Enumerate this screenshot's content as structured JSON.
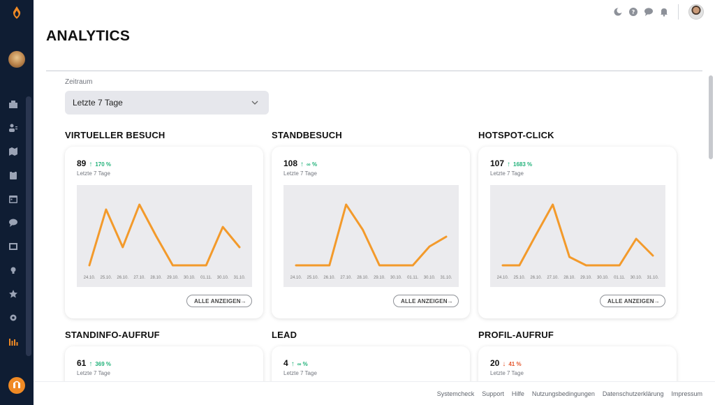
{
  "header": {
    "title": "ANALYTICS"
  },
  "filter": {
    "label": "Zeitraum",
    "selected": "Letzte 7 Tage"
  },
  "sidebar": {
    "icons": [
      "dashboard-icon",
      "users-icon",
      "map-icon",
      "clipboard-icon",
      "calendar-icon",
      "chat-icon",
      "media-icon",
      "lightbulb-icon",
      "star-icon",
      "settings-icon",
      "analytics-icon"
    ]
  },
  "topbar": {
    "icons": [
      "theme-toggle-icon",
      "help-icon",
      "messages-icon",
      "notification-icon"
    ]
  },
  "date_labels": [
    "24.10.",
    "25.10.",
    "26.10.",
    "27.10.",
    "28.10.",
    "29.10.",
    "30.10.",
    "01.11.",
    "30.10.",
    "31.10."
  ],
  "cards": [
    {
      "title": "VIRTUELLER BESUCH",
      "value": "89",
      "trend": "up",
      "arrow": "↑",
      "percent": "170 %",
      "period": "Letzte 7 Tage",
      "button": "ALLE ANZEIGEN",
      "chart_data": {
        "type": "line",
        "x": [
          "24.10.",
          "25.10.",
          "26.10.",
          "27.10.",
          "28.10.",
          "29.10.",
          "30.10.",
          "01.11.",
          "30.10.",
          "31.10."
        ],
        "values": [
          0.0,
          0.8,
          0.26,
          0.87,
          0.42,
          0.0,
          0.0,
          0.0,
          0.55,
          0.26
        ]
      }
    },
    {
      "title": "STANDBESUCH",
      "value": "108",
      "trend": "up",
      "arrow": "↑",
      "percent": "∞ %",
      "period": "Letzte 7 Tage",
      "button": "ALLE ANZEIGEN",
      "chart_data": {
        "type": "line",
        "x": [
          "24.10.",
          "25.10.",
          "26.10.",
          "27.10.",
          "28.10.",
          "29.10.",
          "30.10.",
          "01.11.",
          "30.10.",
          "31.10."
        ],
        "values": [
          0.0,
          0.0,
          0.0,
          0.87,
          0.51,
          0.0,
          0.0,
          0.0,
          0.27,
          0.41
        ]
      }
    },
    {
      "title": "HOTSPOT-CLICK",
      "value": "107",
      "trend": "up",
      "arrow": "↑",
      "percent": "1683 %",
      "period": "Letzte 7 Tage",
      "button": "ALLE ANZEIGEN",
      "chart_data": {
        "type": "line",
        "x": [
          "24.10.",
          "25.10.",
          "26.10.",
          "27.10.",
          "28.10.",
          "29.10.",
          "30.10.",
          "01.11.",
          "30.10.",
          "31.10."
        ],
        "values": [
          0.0,
          0.0,
          0.44,
          0.87,
          0.12,
          0.0,
          0.0,
          0.0,
          0.38,
          0.14
        ]
      }
    },
    {
      "title": "STANDINFO-AUFRUF",
      "value": "61",
      "trend": "up",
      "arrow": "↑",
      "percent": "369 %",
      "period": "Letzte 7 Tage"
    },
    {
      "title": "LEAD",
      "value": "4",
      "trend": "up",
      "arrow": "↑",
      "percent": "∞ %",
      "period": "Letzte 7 Tage"
    },
    {
      "title": "PROFIL-AUFRUF",
      "value": "20",
      "trend": "down",
      "arrow": "↓",
      "percent": "41 %",
      "period": "Letzte 7 Tage"
    }
  ],
  "colors": {
    "line": "#f39a2b",
    "sidebar": "#0f1d33",
    "up": "#22b27a",
    "down": "#e4572e"
  },
  "footer": {
    "links": [
      "Systemcheck",
      "Support",
      "Hilfe",
      "Nutzungsbedingungen",
      "Datenschutzerklärung",
      "Impressum"
    ]
  }
}
